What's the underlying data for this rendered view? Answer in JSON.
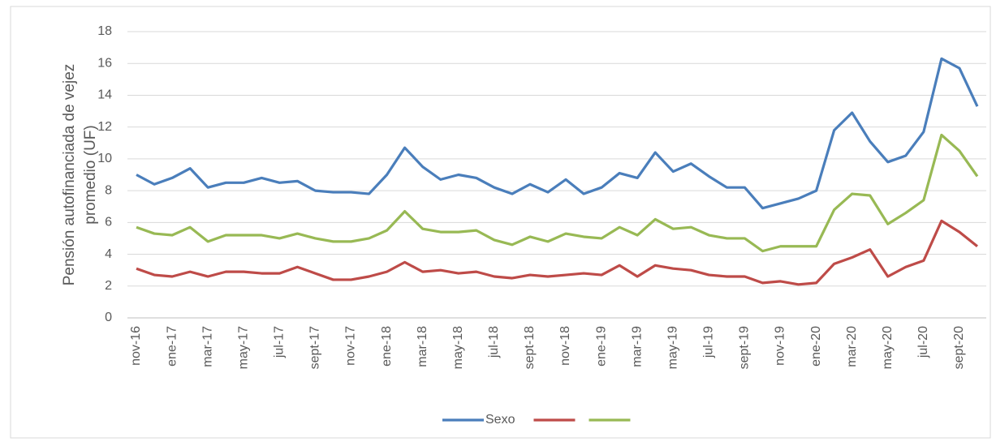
{
  "chart_data": {
    "type": "line",
    "y_label_lines": [
      "Pensión autofinanciada de vejez",
      "promedio (UF)"
    ],
    "categories": [
      "nov-16",
      null,
      "ene-17",
      null,
      "mar-17",
      null,
      "may-17",
      null,
      "jul-17",
      null,
      "sept-17",
      null,
      "nov-17",
      null,
      "ene-18",
      null,
      "mar-18",
      null,
      "may-18",
      null,
      "jul-18",
      null,
      "sept-18",
      null,
      "nov-18",
      null,
      "ene-19",
      null,
      "mar-19",
      null,
      "may-19",
      null,
      "jul-19",
      null,
      "sept-19",
      null,
      "nov-19",
      null,
      "ene-20",
      null,
      "mar-20",
      null,
      "may-20",
      null,
      "jul-20",
      null,
      "sept-20",
      null
    ],
    "series": [
      {
        "name": "Sexo",
        "color": "#4a7ebb",
        "values": [
          9.0,
          8.4,
          8.8,
          9.4,
          8.2,
          8.5,
          8.5,
          8.8,
          8.5,
          8.6,
          8.0,
          7.9,
          7.9,
          7.8,
          9.0,
          10.7,
          9.5,
          8.7,
          9.0,
          8.8,
          8.2,
          7.8,
          8.4,
          7.9,
          8.7,
          7.8,
          8.2,
          9.1,
          8.8,
          10.4,
          9.2,
          9.7,
          8.9,
          8.2,
          8.2,
          6.9,
          7.2,
          7.5,
          8.0,
          11.8,
          12.9,
          11.1,
          9.8,
          10.2,
          11.7,
          16.3,
          15.7,
          13.3
        ]
      },
      {
        "color": "#be4b48",
        "values": [
          3.1,
          2.7,
          2.6,
          2.9,
          2.6,
          2.9,
          2.9,
          2.8,
          2.8,
          3.2,
          2.8,
          2.4,
          2.4,
          2.6,
          2.9,
          3.5,
          2.9,
          3.0,
          2.8,
          2.9,
          2.6,
          2.5,
          2.7,
          2.6,
          2.7,
          2.8,
          2.7,
          3.3,
          2.6,
          3.3,
          3.1,
          3.0,
          2.7,
          2.6,
          2.6,
          2.2,
          2.3,
          2.1,
          2.2,
          3.4,
          3.8,
          4.3,
          2.6,
          3.2,
          3.6,
          6.1,
          5.4,
          4.5
        ]
      },
      {
        "color": "#98b954",
        "values": [
          5.7,
          5.3,
          5.2,
          5.7,
          4.8,
          5.2,
          5.2,
          5.2,
          5.0,
          5.3,
          5.0,
          4.8,
          4.8,
          5.0,
          5.5,
          6.7,
          5.6,
          5.4,
          5.4,
          5.5,
          4.9,
          4.6,
          5.1,
          4.8,
          5.3,
          5.1,
          5.0,
          5.7,
          5.2,
          6.2,
          5.6,
          5.7,
          5.2,
          5.0,
          5.0,
          4.2,
          4.5,
          4.5,
          4.5,
          6.8,
          7.8,
          7.7,
          5.9,
          6.6,
          7.4,
          11.5,
          10.5,
          8.9
        ]
      }
    ],
    "ylim": [
      0,
      18
    ],
    "yticks": [
      0,
      2,
      4,
      6,
      8,
      10,
      12,
      14,
      16,
      18
    ],
    "grid": true,
    "legend": "bottom"
  }
}
